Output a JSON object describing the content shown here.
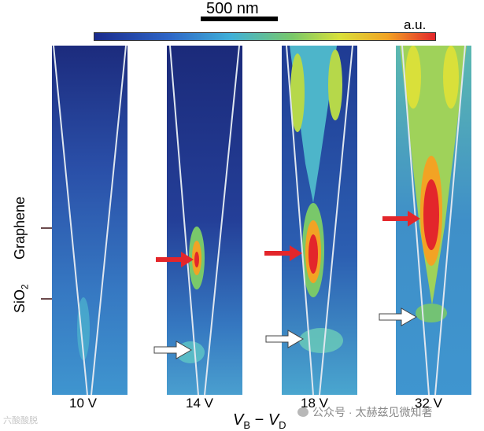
{
  "scale_bar": {
    "label": "500 nm"
  },
  "colorbar": {
    "label": "a.u.",
    "colors": [
      "#1a2a8c",
      "#2e66c7",
      "#3fb0d8",
      "#79c86a",
      "#d9e03a",
      "#f2a324",
      "#e3262b"
    ]
  },
  "side_labels": {
    "graphene": "Graphene",
    "sio2": "SiO",
    "sio2_sub": "2"
  },
  "panels": [
    {
      "voltage": "10 V"
    },
    {
      "voltage": "14 V"
    },
    {
      "voltage": "18 V"
    },
    {
      "voltage": "32 V"
    }
  ],
  "x_axis": {
    "v1": "V",
    "sub1": "B",
    "minus": " − ",
    "v2": "V",
    "sub2": "D"
  },
  "watermark": {
    "text": "公众号 · 太赫兹见微知著"
  },
  "corner_watermark": {
    "text": "六酸酸脱"
  }
}
